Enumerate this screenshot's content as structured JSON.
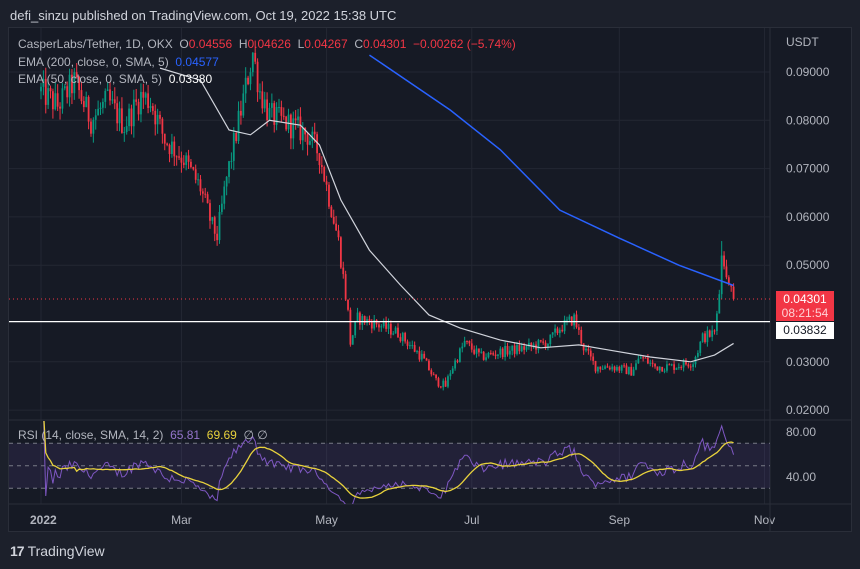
{
  "header": {
    "published": "defi_sinzu published on TradingView.com, Oct 19, 2022 15:38 UTC"
  },
  "legend": {
    "symbol": "CasperLabs/Tether, 1D, OKX",
    "o_label": "O",
    "o": "0.04556",
    "h_label": "H",
    "h": "0.04626",
    "l_label": "L",
    "l": "0.04267",
    "c_label": "C",
    "c": "0.04301",
    "change": "−0.00262 (−5.74%)",
    "ema200_label": "EMA (200, close, 0, SMA, 5)",
    "ema200_value": "0.04577",
    "ema50_label": "EMA (50, close, 0, SMA, 5)",
    "ema50_value": "0.03380",
    "rsi_label": "RSI (14, close, SMA, 14, 2)",
    "rsi_value": "65.81",
    "rsi_sma_value": "69.69",
    "rsi_na": "∅ ∅"
  },
  "price_tags": {
    "last": "0.04301",
    "countdown": "08:21:54",
    "level": "0.03832"
  },
  "footer": {
    "brand": "TradingView",
    "logo_glyph": "17"
  },
  "colors": {
    "up": "#089981",
    "down": "#f23645",
    "ema200": "#2962ff",
    "ema50": "#d1d4dc",
    "rsi": "#7e57c2",
    "rsi_sma": "#e8d23c"
  },
  "chart_data": {
    "type": "candlestick",
    "currency_label": "USDT",
    "y_ticks": [
      "0.09000",
      "0.08000",
      "0.07000",
      "0.06000",
      "0.05000",
      "0.03000",
      "0.02000"
    ],
    "ylim": [
      0.02,
      0.09
    ],
    "x_ticks": [
      {
        "label": "2022",
        "day": 0
      },
      {
        "label": "Mar",
        "day": 59
      },
      {
        "label": "May",
        "day": 120
      },
      {
        "label": "Jul",
        "day": 181
      },
      {
        "label": "Sep",
        "day": 243
      },
      {
        "label": "Nov",
        "day": 304
      }
    ],
    "close_path": [
      [
        0,
        0.086
      ],
      [
        7,
        0.083
      ],
      [
        14,
        0.088
      ],
      [
        21,
        0.08
      ],
      [
        28,
        0.084
      ],
      [
        35,
        0.079
      ],
      [
        42,
        0.085
      ],
      [
        46,
        0.084
      ],
      [
        52,
        0.076
      ],
      [
        60,
        0.072
      ],
      [
        67,
        0.066
      ],
      [
        72,
        0.058
      ],
      [
        74,
        0.056
      ],
      [
        78,
        0.068
      ],
      [
        84,
        0.082
      ],
      [
        89,
        0.094
      ],
      [
        92,
        0.086
      ],
      [
        96,
        0.081
      ],
      [
        105,
        0.079
      ],
      [
        112,
        0.077
      ],
      [
        117,
        0.073
      ],
      [
        121,
        0.064
      ],
      [
        125,
        0.055
      ],
      [
        129,
        0.04
      ],
      [
        130,
        0.034
      ],
      [
        133,
        0.039
      ],
      [
        140,
        0.038
      ],
      [
        150,
        0.036
      ],
      [
        160,
        0.031
      ],
      [
        166,
        0.026
      ],
      [
        170,
        0.025
      ],
      [
        172,
        0.028
      ],
      [
        178,
        0.034
      ],
      [
        185,
        0.031
      ],
      [
        193,
        0.032
      ],
      [
        205,
        0.033
      ],
      [
        213,
        0.034
      ],
      [
        218,
        0.037
      ],
      [
        224,
        0.039
      ],
      [
        228,
        0.033
      ],
      [
        233,
        0.029
      ],
      [
        240,
        0.029
      ],
      [
        248,
        0.028
      ],
      [
        252,
        0.031
      ],
      [
        258,
        0.029
      ],
      [
        265,
        0.029
      ],
      [
        274,
        0.03
      ],
      [
        278,
        0.035
      ],
      [
        283,
        0.036
      ],
      [
        285,
        0.044
      ],
      [
        286,
        0.052
      ],
      [
        288,
        0.0475
      ],
      [
        289,
        0.046
      ],
      [
        290,
        0.04556
      ]
    ],
    "last_candle": {
      "open": 0.04556,
      "high": 0.04626,
      "low": 0.04267,
      "close": 0.04301
    },
    "ema200": [
      [
        138,
        0.0935
      ],
      [
        172,
        0.0821
      ],
      [
        193,
        0.0739
      ],
      [
        218,
        0.0614
      ],
      [
        243,
        0.0556
      ],
      [
        268,
        0.05
      ],
      [
        291,
        0.0458
      ]
    ],
    "ema50": [
      [
        50,
        0.0908
      ],
      [
        67,
        0.0883
      ],
      [
        79,
        0.078
      ],
      [
        88,
        0.077
      ],
      [
        96,
        0.08
      ],
      [
        109,
        0.079
      ],
      [
        117,
        0.0749
      ],
      [
        126,
        0.0635
      ],
      [
        138,
        0.0531
      ],
      [
        151,
        0.0459
      ],
      [
        163,
        0.0397
      ],
      [
        176,
        0.037
      ],
      [
        193,
        0.0345
      ],
      [
        210,
        0.0329
      ],
      [
        226,
        0.0335
      ],
      [
        239,
        0.0324
      ],
      [
        256,
        0.031
      ],
      [
        273,
        0.03
      ],
      [
        283,
        0.0314
      ],
      [
        291,
        0.0338
      ]
    ],
    "horizontal_level": 0.03832,
    "rsi": {
      "levels": [
        30,
        50,
        70
      ],
      "y_ticks": [
        "80.00",
        "40.00"
      ],
      "ylim": [
        20,
        90
      ]
    }
  }
}
